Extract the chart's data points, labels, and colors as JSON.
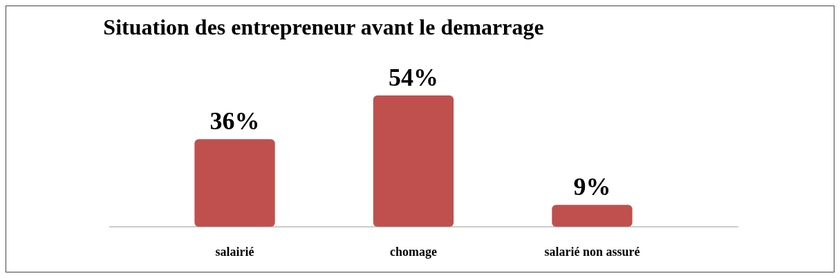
{
  "chart_data": {
    "type": "bar",
    "title": "Situation des entrepreneur avant le demarrage",
    "categories": [
      "salairié",
      "chomage",
      "salarié non assuré"
    ],
    "values": [
      36,
      54,
      9
    ],
    "color": "#c0504d",
    "value_labels": [
      "36%",
      "54%",
      "9%"
    ]
  }
}
